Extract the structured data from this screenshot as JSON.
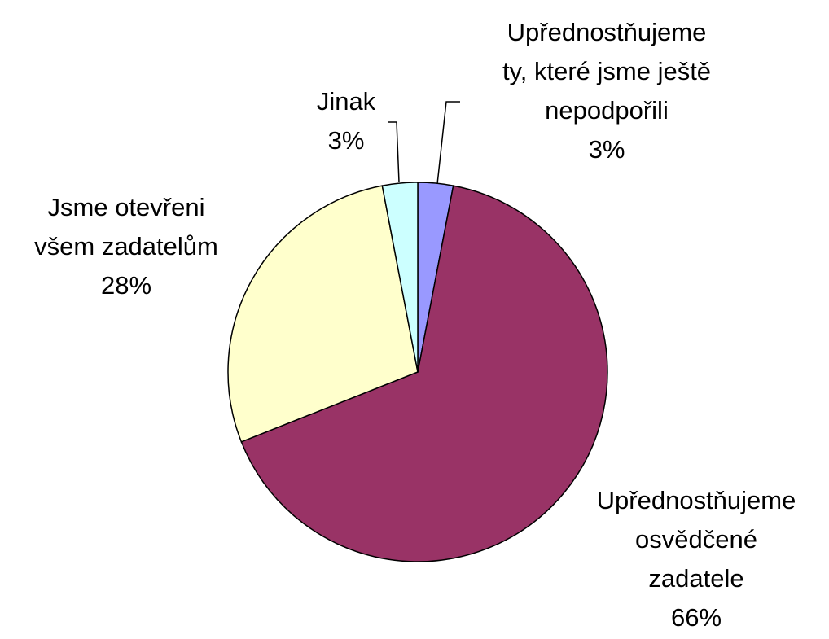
{
  "chart_data": {
    "type": "pie",
    "categories": [
      "Upřednostňujeme\nty, které jsme ještě\nnepodpořili",
      "Upřednostňujeme\nosvědčené\nzadatele",
      "Jsme otevřeni\nvšem zadatelům",
      "Jinak"
    ],
    "values": [
      3,
      66,
      28,
      3
    ],
    "value_labels": [
      "3%",
      "66%",
      "28%",
      "3%"
    ],
    "colors": [
      "#9999ff",
      "#993366",
      "#ffffcc",
      "#ccffff"
    ]
  }
}
